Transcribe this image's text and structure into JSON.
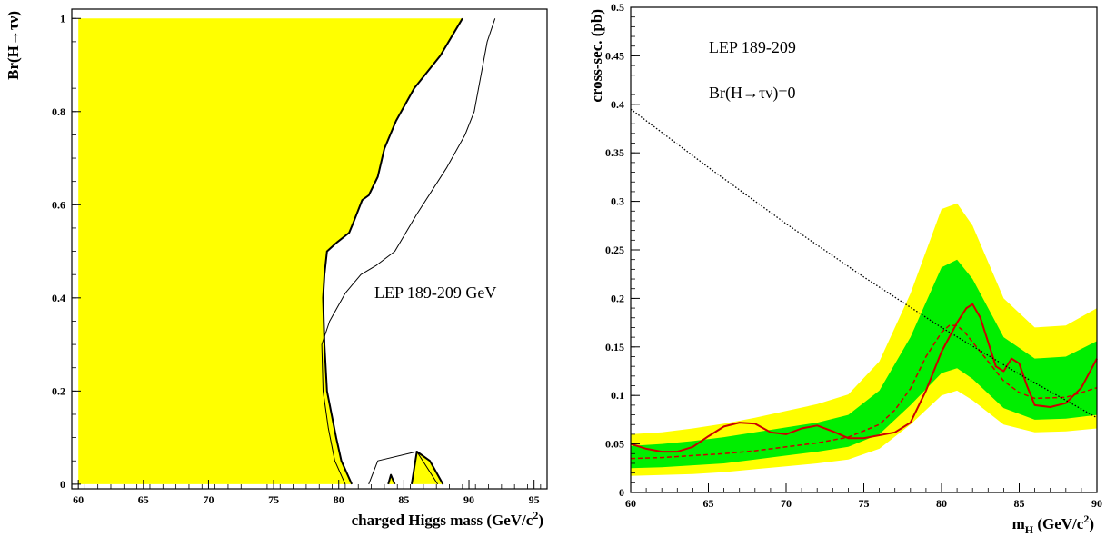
{
  "chart_data": [
    {
      "type": "area",
      "title": "",
      "xlabel": "charged Higgs mass (GeV/c",
      "xlabel_sup": "2",
      "xlabel_close": ")",
      "ylabel": "Br(H→τν)",
      "xlim": [
        59.5,
        96
      ],
      "ylim": [
        -0.01,
        1.02
      ],
      "xticks": [
        60,
        65,
        70,
        75,
        80,
        85,
        90,
        95
      ],
      "xtick_labels": [
        "60",
        "65",
        "70",
        "75",
        "80",
        "85",
        "90",
        "95"
      ],
      "yticks": [
        0,
        0.2,
        0.4,
        0.6,
        0.8,
        1
      ],
      "ytick_labels": [
        "0",
        "0.2",
        "0.4",
        "0.6",
        "0.8",
        "1"
      ],
      "annotation": "LEP 189-209 GeV",
      "fill_color": "#ffff00",
      "series": [
        {
          "role": "excluded_region_observed",
          "x": [
            60,
            89.5,
            87.8,
            85.8,
            84.4,
            83.5,
            83.0,
            82.3,
            81.8,
            81.1,
            80.8,
            79.9,
            79.1,
            78.9,
            78.8,
            78.9,
            79.1,
            79.8,
            80.2,
            81.0,
            60
          ],
          "y": [
            1,
            1,
            0.92,
            0.85,
            0.78,
            0.72,
            0.66,
            0.62,
            0.61,
            0.56,
            0.54,
            0.52,
            0.5,
            0.45,
            0.4,
            0.3,
            0.2,
            0.1,
            0.05,
            0,
            0
          ]
        },
        {
          "role": "excluded_island_1",
          "x": [
            83.8,
            84.0,
            84.3
          ],
          "y": [
            0,
            0.02,
            0
          ]
        },
        {
          "role": "excluded_island_2",
          "x": [
            85.6,
            86.0,
            87.0,
            88.0
          ],
          "y": [
            0,
            0.07,
            0.05,
            0
          ]
        },
        {
          "role": "expected_limit",
          "x": [
            92.0,
            91.4,
            90.4,
            89.7,
            88.3,
            86.0,
            84.3,
            82.9,
            81.7,
            80.5,
            79.3,
            78.7,
            78.8,
            79.2,
            79.7,
            80.5
          ],
          "y": [
            1,
            0.95,
            0.8,
            0.75,
            0.68,
            0.58,
            0.5,
            0.47,
            0.45,
            0.41,
            0.35,
            0.3,
            0.2,
            0.12,
            0.05,
            0
          ]
        },
        {
          "role": "expected_island",
          "x": [
            82.3,
            83.0,
            86.0,
            87.6
          ],
          "y": [
            0,
            0.05,
            0.07,
            0
          ]
        }
      ]
    },
    {
      "type": "line",
      "title": "",
      "xlabel": "m",
      "xlabel_sub": "H",
      "xlabel_rest": " (GeV/c",
      "xlabel_sup": "2",
      "xlabel_close": ")",
      "ylabel": "cross-sec. (pb)",
      "xlim": [
        60,
        90
      ],
      "ylim": [
        0,
        0.5
      ],
      "xticks": [
        60,
        65,
        70,
        75,
        80,
        85,
        90
      ],
      "xtick_labels": [
        "60",
        "65",
        "70",
        "75",
        "80",
        "85",
        "90"
      ],
      "yticks": [
        0,
        0.05,
        0.1,
        0.15,
        0.2,
        0.25,
        0.3,
        0.35,
        0.4,
        0.45,
        0.5
      ],
      "ytick_labels": [
        "0",
        "0.05",
        "0.1",
        "0.15",
        "0.2",
        "0.25",
        "0.3",
        "0.35",
        "0.4",
        "0.45",
        "0.5"
      ],
      "annotation_1": "LEP 189-209",
      "annotation_2": "Br(H→τν)=0",
      "colors": {
        "band_2sigma": "#ffff00",
        "band_1sigma": "#00ee00",
        "observed": "#cc0000",
        "expected": "#cc0000",
        "theory": "#000000"
      },
      "band_2sigma": {
        "x": [
          60,
          62,
          64,
          66,
          68,
          70,
          72,
          74,
          76,
          78,
          80,
          81,
          82,
          84,
          86,
          88,
          90
        ],
        "low": [
          0.017,
          0.018,
          0.019,
          0.021,
          0.024,
          0.027,
          0.03,
          0.034,
          0.045,
          0.07,
          0.1,
          0.105,
          0.095,
          0.07,
          0.062,
          0.063,
          0.066
        ],
        "high": [
          0.06,
          0.062,
          0.066,
          0.071,
          0.077,
          0.084,
          0.091,
          0.101,
          0.135,
          0.205,
          0.292,
          0.298,
          0.275,
          0.2,
          0.17,
          0.172,
          0.19
        ]
      },
      "band_1sigma": {
        "x": [
          60,
          62,
          64,
          66,
          68,
          70,
          72,
          74,
          76,
          78,
          80,
          81,
          82,
          84,
          86,
          88,
          90
        ],
        "low": [
          0.025,
          0.026,
          0.028,
          0.03,
          0.034,
          0.038,
          0.042,
          0.047,
          0.06,
          0.09,
          0.123,
          0.128,
          0.117,
          0.087,
          0.075,
          0.076,
          0.08
        ],
        "high": [
          0.048,
          0.05,
          0.053,
          0.057,
          0.062,
          0.067,
          0.072,
          0.08,
          0.105,
          0.16,
          0.232,
          0.24,
          0.22,
          0.16,
          0.138,
          0.14,
          0.156
        ]
      },
      "series": [
        {
          "role": "observed",
          "x": [
            60,
            61,
            62,
            63,
            64,
            65,
            66,
            67,
            68,
            69,
            70,
            71,
            72,
            73,
            74,
            75,
            76,
            77,
            78,
            79,
            80,
            81,
            81.6,
            82,
            82.5,
            83,
            83.5,
            84,
            84.5,
            85,
            85.5,
            86,
            87,
            88,
            89,
            90
          ],
          "y": [
            0.05,
            0.045,
            0.042,
            0.042,
            0.047,
            0.058,
            0.068,
            0.072,
            0.071,
            0.062,
            0.06,
            0.066,
            0.069,
            0.063,
            0.056,
            0.056,
            0.059,
            0.062,
            0.072,
            0.105,
            0.145,
            0.175,
            0.19,
            0.194,
            0.18,
            0.155,
            0.13,
            0.125,
            0.138,
            0.133,
            0.11,
            0.09,
            0.088,
            0.092,
            0.108,
            0.138
          ]
        },
        {
          "role": "expected",
          "x": [
            60,
            62,
            64,
            66,
            68,
            70,
            72,
            74,
            76,
            77,
            78,
            79,
            80,
            80.5,
            81,
            81.5,
            82,
            83,
            84,
            85,
            86,
            88,
            90
          ],
          "y": [
            0.035,
            0.036,
            0.038,
            0.04,
            0.043,
            0.047,
            0.051,
            0.057,
            0.07,
            0.085,
            0.107,
            0.14,
            0.165,
            0.172,
            0.172,
            0.165,
            0.155,
            0.135,
            0.115,
            0.103,
            0.097,
            0.098,
            0.108
          ]
        },
        {
          "role": "theory",
          "x": [
            60,
            65,
            70,
            75,
            80,
            85,
            90
          ],
          "y": [
            0.395,
            0.335,
            0.277,
            0.222,
            0.17,
            0.122,
            0.077
          ]
        }
      ]
    }
  ]
}
